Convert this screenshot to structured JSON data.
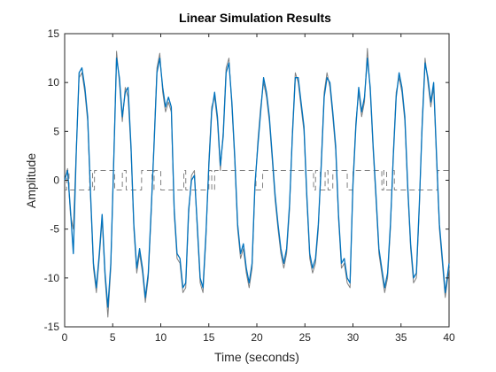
{
  "chart_data": {
    "type": "line",
    "title": "Linear Simulation Results",
    "xlabel": "Time (seconds)",
    "ylabel": "Amplitude",
    "xlim": [
      0,
      40
    ],
    "ylim": [
      -15,
      15
    ],
    "xticks": [
      "0",
      "5",
      "10",
      "15",
      "20",
      "25",
      "30",
      "35",
      "40"
    ],
    "yticks": [
      "-15",
      "-10",
      "-5",
      "0",
      "5",
      "10",
      "15"
    ],
    "grid": false,
    "colors": {
      "response": "#0072BD",
      "reference": "#808080",
      "input": "#808080"
    },
    "series": [
      {
        "role": "input",
        "style": "dashed",
        "x": [
          0,
          0.2,
          0.21,
          0.45,
          0.46,
          2.6,
          2.61,
          2.9,
          2.91,
          3.1,
          3.11,
          5.2,
          5.21,
          6.0,
          6.01,
          6.4,
          6.41,
          8.0,
          8.01,
          9.1,
          9.11,
          9.3,
          9.31,
          10.0,
          10.01,
          12.4,
          12.41,
          12.6,
          12.61,
          15.0,
          15.01,
          15.3,
          15.31,
          15.6,
          15.61,
          19.9,
          19.91,
          20.6,
          20.61,
          25.9,
          25.91,
          26.1,
          26.11,
          26.6,
          26.61,
          27.1,
          27.11,
          27.4,
          27.41,
          27.9,
          27.91,
          29.4,
          29.41,
          30.0,
          30.01,
          33.0,
          33.01,
          33.2,
          33.21,
          33.5,
          33.51,
          34.1,
          34.11,
          34.3,
          34.31,
          38.8,
          38.81,
          40
        ],
        "y": [
          -1,
          -1,
          1,
          1,
          -1,
          -1,
          1,
          1,
          -1,
          -1,
          1,
          1,
          -1,
          -1,
          1,
          1,
          -1,
          -1,
          1,
          1,
          -1,
          -1,
          1,
          1,
          -1,
          -1,
          1,
          1,
          -1,
          -1,
          1,
          1,
          -1,
          -1,
          1,
          1,
          -1,
          -1,
          1,
          1,
          -1,
          -1,
          1,
          1,
          -1,
          -1,
          1,
          1,
          -1,
          -1,
          1,
          1,
          -1,
          -1,
          1,
          1,
          -1,
          -1,
          1,
          1,
          -1,
          -1,
          1,
          1,
          -1,
          -1,
          1,
          1
        ]
      },
      {
        "role": "reference",
        "style": "solid",
        "x": [
          0,
          0.3,
          0.6,
          0.9,
          1.2,
          1.5,
          1.8,
          2.1,
          2.4,
          2.7,
          3.0,
          3.3,
          3.6,
          3.9,
          4.2,
          4.5,
          4.8,
          5.1,
          5.4,
          5.7,
          6.0,
          6.3,
          6.6,
          6.9,
          7.2,
          7.5,
          7.8,
          8.1,
          8.4,
          8.7,
          9.0,
          9.3,
          9.6,
          9.9,
          10.2,
          10.5,
          10.8,
          11.1,
          11.4,
          11.7,
          12.0,
          12.3,
          12.6,
          12.9,
          13.2,
          13.5,
          13.8,
          14.1,
          14.4,
          14.7,
          15.0,
          15.3,
          15.6,
          15.9,
          16.2,
          16.5,
          16.8,
          17.1,
          17.4,
          17.7,
          18.0,
          18.3,
          18.6,
          18.9,
          19.2,
          19.5,
          19.8,
          20.1,
          20.4,
          20.7,
          21.0,
          21.3,
          21.6,
          21.9,
          22.2,
          22.5,
          22.8,
          23.1,
          23.4,
          23.7,
          24.0,
          24.3,
          24.6,
          24.9,
          25.2,
          25.5,
          25.8,
          26.1,
          26.4,
          26.7,
          27.0,
          27.3,
          27.6,
          27.9,
          28.2,
          28.5,
          28.8,
          29.1,
          29.4,
          29.7,
          30.0,
          30.3,
          30.6,
          30.9,
          31.2,
          31.5,
          31.8,
          32.1,
          32.4,
          32.7,
          33.0,
          33.3,
          33.6,
          33.9,
          34.2,
          34.5,
          34.8,
          35.1,
          35.4,
          35.7,
          36.0,
          36.3,
          36.6,
          36.9,
          37.2,
          37.5,
          37.8,
          38.1,
          38.4,
          38.7,
          39.0,
          39.3,
          39.6,
          40.0
        ],
        "y": [
          0,
          1.2,
          -3.5,
          -5.0,
          3.0,
          10.5,
          11.0,
          9.0,
          6.0,
          -2.0,
          -9.0,
          -11.5,
          -8.0,
          -4.0,
          -10.0,
          -14.0,
          -9.0,
          2.0,
          13.2,
          10.0,
          6.0,
          9.5,
          8.5,
          3.0,
          -5.0,
          -9.5,
          -7.5,
          -9.5,
          -12.5,
          -10.0,
          -3.5,
          4.0,
          11.5,
          13.0,
          9.0,
          7.0,
          8.0,
          7.0,
          -3.5,
          -8.0,
          -8.5,
          -11.5,
          -11.0,
          -3.5,
          0.5,
          1.0,
          -5.0,
          -10.5,
          -11.5,
          -6.0,
          2.0,
          7.5,
          8.5,
          6.0,
          1.0,
          5.0,
          11.5,
          12.5,
          7.5,
          2.0,
          -5.0,
          -8.0,
          -7.0,
          -9.5,
          -11.0,
          -9.0,
          -1.0,
          4.0,
          7.5,
          10.0,
          8.5,
          6.0,
          2.0,
          -2.0,
          -5.0,
          -7.5,
          -9.0,
          -7.5,
          -3.0,
          5.0,
          11.0,
          10.0,
          7.5,
          5.0,
          -2.0,
          -8.0,
          -9.5,
          -8.5,
          -5.0,
          2.0,
          9.0,
          11.0,
          9.5,
          6.5,
          3.0,
          -4.0,
          -9.0,
          -8.5,
          -10.5,
          -11.0,
          0.0,
          6.0,
          9.0,
          6.5,
          8.0,
          13.5,
          9.0,
          3.0,
          -2.0,
          -7.5,
          -9.5,
          -11.5,
          -10.0,
          -5.0,
          3.0,
          9.0,
          10.5,
          9.0,
          6.0,
          -1.0,
          -7.0,
          -10.5,
          -10.0,
          -3.0,
          6.0,
          12.5,
          10.0,
          7.5,
          9.5,
          2.0,
          -5.0,
          -8.5,
          -12.0,
          -9.0
        ]
      },
      {
        "role": "response",
        "style": "solid",
        "x": [
          0,
          0.3,
          0.6,
          0.9,
          1.2,
          1.5,
          1.8,
          2.1,
          2.4,
          2.7,
          3.0,
          3.3,
          3.6,
          3.9,
          4.2,
          4.5,
          4.8,
          5.1,
          5.4,
          5.7,
          6.0,
          6.3,
          6.6,
          6.9,
          7.2,
          7.5,
          7.8,
          8.1,
          8.4,
          8.7,
          9.0,
          9.3,
          9.6,
          9.9,
          10.2,
          10.5,
          10.8,
          11.1,
          11.4,
          11.7,
          12.0,
          12.3,
          12.6,
          12.9,
          13.2,
          13.5,
          13.8,
          14.1,
          14.4,
          14.7,
          15.0,
          15.3,
          15.6,
          15.9,
          16.2,
          16.5,
          16.8,
          17.1,
          17.4,
          17.7,
          18.0,
          18.3,
          18.6,
          18.9,
          19.2,
          19.5,
          19.8,
          20.1,
          20.4,
          20.7,
          21.0,
          21.3,
          21.6,
          21.9,
          22.2,
          22.5,
          22.8,
          23.1,
          23.4,
          23.7,
          24.0,
          24.3,
          24.6,
          24.9,
          25.2,
          25.5,
          25.8,
          26.1,
          26.4,
          26.7,
          27.0,
          27.3,
          27.6,
          27.9,
          28.2,
          28.5,
          28.8,
          29.1,
          29.4,
          29.7,
          30.0,
          30.3,
          30.6,
          30.9,
          31.2,
          31.5,
          31.8,
          32.1,
          32.4,
          32.7,
          33.0,
          33.3,
          33.6,
          33.9,
          34.2,
          34.5,
          34.8,
          35.1,
          35.4,
          35.7,
          36.0,
          36.3,
          36.6,
          36.9,
          37.2,
          37.5,
          37.8,
          38.1,
          38.4,
          38.7,
          39.0,
          39.3,
          39.6,
          40.0
        ],
        "y": [
          0,
          1.0,
          -3.0,
          -7.5,
          2.5,
          11.0,
          11.5,
          9.5,
          6.5,
          -1.5,
          -8.5,
          -11.0,
          -7.5,
          -3.5,
          -9.5,
          -13.0,
          -8.5,
          1.5,
          12.5,
          10.5,
          6.5,
          9.0,
          9.5,
          3.5,
          -4.5,
          -9.0,
          -7.0,
          -9.0,
          -12.0,
          -9.5,
          -3.0,
          3.5,
          11.0,
          12.5,
          9.5,
          7.5,
          8.5,
          7.5,
          -3.0,
          -7.5,
          -8.0,
          -11.0,
          -10.5,
          -3.0,
          0.0,
          0.5,
          -4.5,
          -10.0,
          -11.0,
          -5.5,
          1.5,
          7.0,
          9.0,
          6.5,
          1.5,
          4.5,
          11.0,
          12.0,
          8.0,
          2.5,
          -4.5,
          -7.5,
          -6.5,
          -9.0,
          -10.5,
          -8.5,
          -0.5,
          3.5,
          7.0,
          10.5,
          9.0,
          6.5,
          2.5,
          -1.5,
          -4.5,
          -7.0,
          -8.5,
          -7.0,
          -2.5,
          4.5,
          10.5,
          10.5,
          8.0,
          5.5,
          -1.5,
          -7.5,
          -9.0,
          -8.0,
          -4.5,
          1.5,
          8.5,
          10.5,
          10.0,
          7.0,
          3.5,
          -3.5,
          -8.5,
          -8.0,
          -10.0,
          -10.5,
          -0.5,
          5.5,
          9.5,
          7.0,
          8.5,
          12.5,
          9.5,
          3.5,
          -1.5,
          -7.0,
          -9.0,
          -11.0,
          -9.5,
          -4.5,
          2.5,
          8.5,
          11.0,
          9.5,
          6.5,
          -0.5,
          -6.5,
          -10.0,
          -9.5,
          -2.5,
          5.5,
          12.0,
          10.5,
          8.0,
          10.0,
          2.5,
          -4.5,
          -8.0,
          -11.5,
          -8.5
        ]
      }
    ]
  }
}
